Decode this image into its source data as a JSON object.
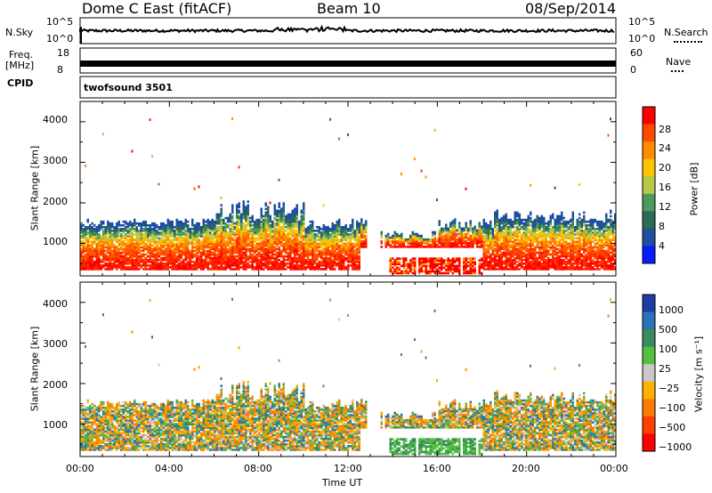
{
  "header": {
    "radar": "Dome C East (fitACF)",
    "beam": "Beam 10",
    "date": "08/Sep/2014"
  },
  "strips": {
    "nsky_label": "N.Sky",
    "nsky_ticks": [
      "10^5",
      "10^0"
    ],
    "nsearch_label": "N.Search",
    "freq_label": "Freq.",
    "freq_unit": "[MHz]",
    "freq_ticks": [
      "18",
      "8"
    ],
    "nave_label": "Nave",
    "nave_ticks": [
      "60",
      "0"
    ],
    "cpid_label": "CPID",
    "cpid_value": "twofsound 3501"
  },
  "chart_data": [
    {
      "type": "heatmap",
      "name": "power",
      "ylabel": "Slant Range [km]",
      "ylim": [
        200,
        4500
      ],
      "yticks": [
        "4000",
        "3000",
        "2000",
        "1000"
      ],
      "colorbar_label": "Power [dB]",
      "colorbar_ticks": [
        "28",
        "24",
        "20",
        "16",
        "12",
        "8",
        "4"
      ],
      "colorbar_colors": [
        "#ff0000",
        "#ff4a00",
        "#ff8c00",
        "#ffc400",
        "#b7c84a",
        "#4d9a5e",
        "#2e6b52",
        "#1f4fa0",
        "#0a1cff"
      ]
    },
    {
      "type": "heatmap",
      "name": "velocity",
      "ylabel": "Slant Range [km]",
      "ylim": [
        200,
        4500
      ],
      "yticks": [
        "4000",
        "3000",
        "2000",
        "1000"
      ],
      "colorbar_label": "Velocity [m s⁻¹]",
      "colorbar_ticks": [
        "1000",
        "500",
        "100",
        "25",
        "−25",
        "−100",
        "−500",
        "−1000"
      ],
      "colorbar_colors": [
        "#1c3fa6",
        "#2b72b8",
        "#3c8a60",
        "#55c040",
        "#c8c8c8",
        "#ffb000",
        "#ff7a00",
        "#ff4000",
        "#ff0000"
      ]
    }
  ],
  "xaxis": {
    "label": "Time UT",
    "ticks": [
      "00:00",
      "04:00",
      "08:00",
      "12:00",
      "16:00",
      "20:00",
      "00:00"
    ]
  }
}
